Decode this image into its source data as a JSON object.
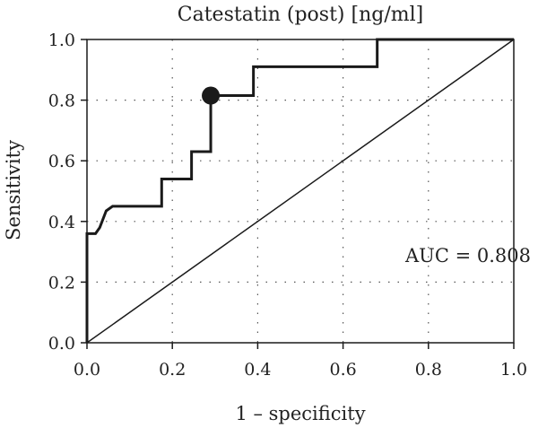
{
  "chart_data": {
    "type": "line",
    "title": "Catestatin (post) [ng/ml]",
    "xlabel": "1 – specificity",
    "ylabel": "Sensitivity",
    "xlim": [
      0,
      1
    ],
    "ylim": [
      0,
      1
    ],
    "x_ticks": [
      "0.0",
      "0.2",
      "0.4",
      "0.6",
      "0.8",
      "1.0"
    ],
    "y_ticks": [
      "0.0",
      "0.2",
      "0.4",
      "0.6",
      "0.8",
      "1.0"
    ],
    "grid": "dotted",
    "series": [
      {
        "role": "roc-curve",
        "points": [
          [
            0,
            0
          ],
          [
            0,
            0.36
          ],
          [
            0.02,
            0.36
          ],
          [
            0.03,
            0.38
          ],
          [
            0.045,
            0.435
          ],
          [
            0.06,
            0.45
          ],
          [
            0.175,
            0.45
          ],
          [
            0.175,
            0.54
          ],
          [
            0.245,
            0.54
          ],
          [
            0.245,
            0.63
          ],
          [
            0.29,
            0.63
          ],
          [
            0.29,
            0.815
          ],
          [
            0.39,
            0.815
          ],
          [
            0.39,
            0.91
          ],
          [
            0.68,
            0.91
          ],
          [
            0.68,
            1.0
          ],
          [
            1.0,
            1.0
          ]
        ]
      },
      {
        "role": "reference-diagonal",
        "points": [
          [
            0,
            0
          ],
          [
            1,
            1
          ]
        ]
      }
    ],
    "highlight_point": {
      "x": 0.29,
      "y": 0.815
    },
    "annotation": "AUC = 0.808"
  }
}
